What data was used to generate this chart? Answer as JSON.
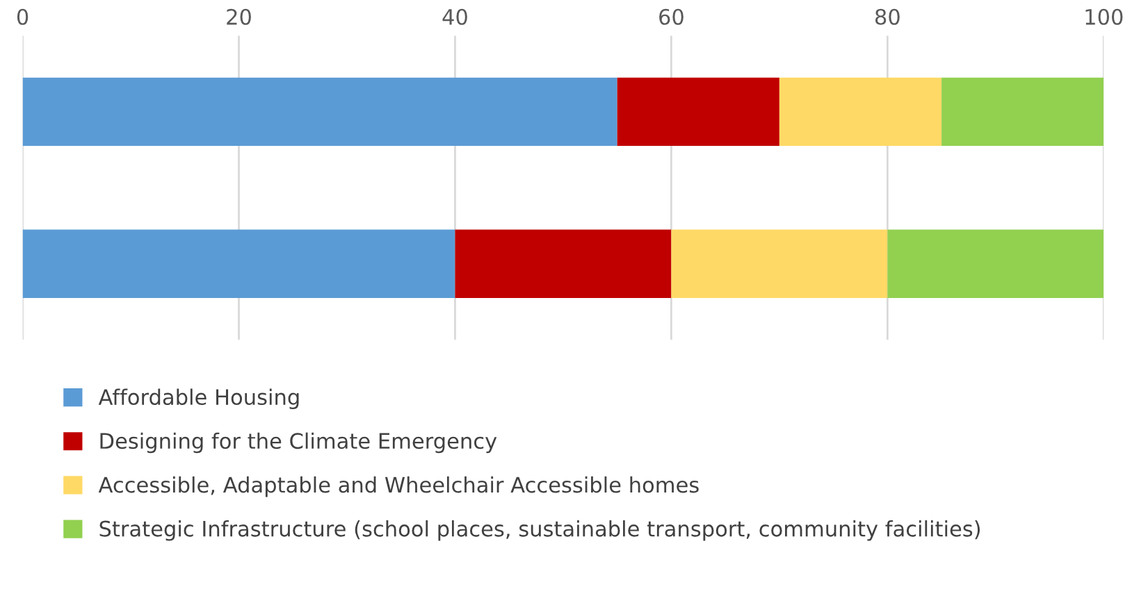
{
  "chart_data": {
    "type": "bar",
    "orientation": "horizontal",
    "stacked": true,
    "categories": [
      null,
      null
    ],
    "series": [
      {
        "name": "Affordable Housing",
        "color": "#5b9bd5",
        "values": [
          55,
          40
        ]
      },
      {
        "name": "Designing for the Climate Emergency",
        "color": "#c00000",
        "values": [
          15,
          20
        ]
      },
      {
        "name": "Accessible, Adaptable and Wheelchair Accessible homes",
        "color": "#ffd966",
        "values": [
          15,
          20
        ]
      },
      {
        "name": "Strategic Infrastructure (school places, sustainable transport, community facilities)",
        "color": "#92d050",
        "values": [
          15,
          20
        ]
      }
    ],
    "xlim": [
      0,
      100
    ],
    "xticks": [
      0,
      20,
      40,
      60,
      80,
      100
    ],
    "grid": "x",
    "legend": "bottom"
  }
}
